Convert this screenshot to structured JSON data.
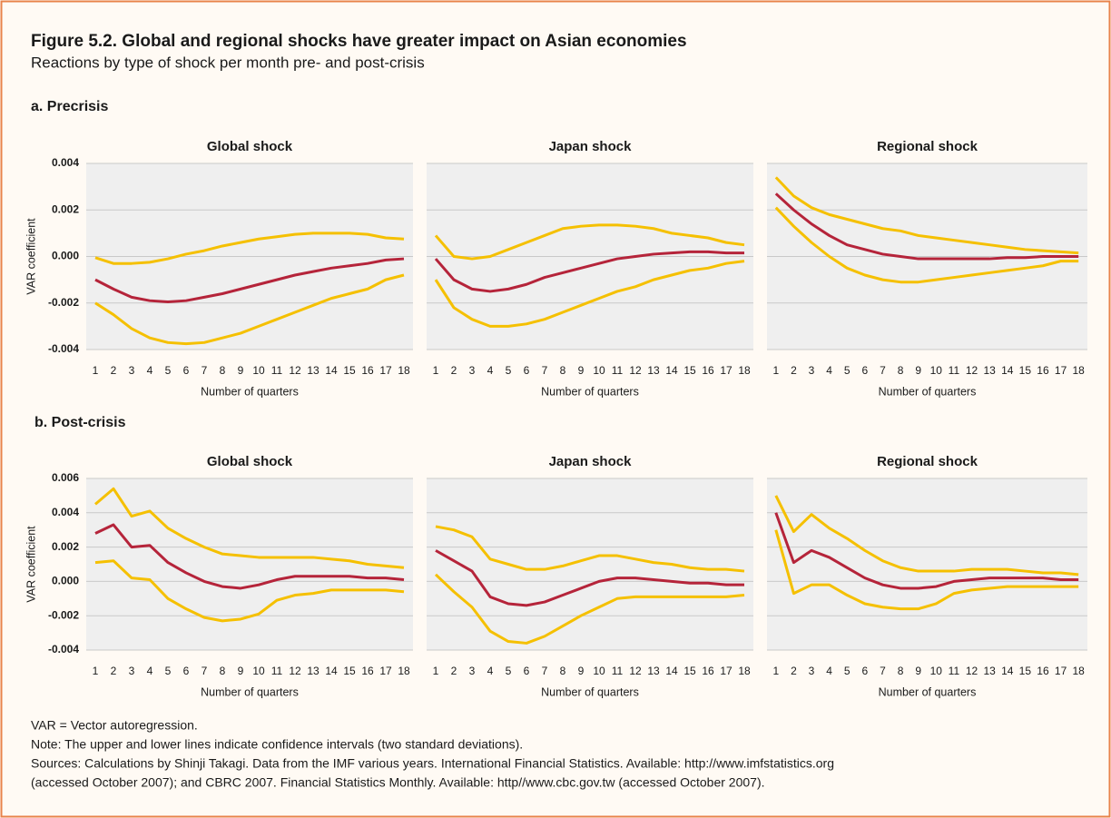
{
  "header": {
    "title": "Figure 5.2. Global and regional shocks have greater impact on Asian economies",
    "subtitle": "Reactions by type of shock per month pre- and post-crisis"
  },
  "sections": [
    "a. Precrisis",
    "b. Post-crisis"
  ],
  "chart_data": [
    {
      "type": "line",
      "title": "Global shock",
      "xlabel": "Number of quarters",
      "ylabel": "VAR coefficient",
      "categories": [
        "1",
        "2",
        "3",
        "4",
        "5",
        "6",
        "7",
        "8",
        "9",
        "10",
        "11",
        "12",
        "13",
        "14",
        "15",
        "16",
        "17",
        "18"
      ],
      "ylim": [
        -0.004,
        0.004
      ],
      "yticks": [
        -0.004,
        -0.002,
        {
          "value": 0,
          "label": "0.000"
        },
        0.002,
        0.004
      ],
      "ytick_labels": true,
      "grid": true,
      "series": [
        {
          "color": "#f5c000",
          "values": [
            -5e-05,
            -0.0003,
            -0.0003,
            -0.00025,
            -0.0001,
            0.0001,
            0.00025,
            0.00045,
            0.0006,
            0.00075,
            0.00085,
            0.00095,
            0.001,
            0.001,
            0.001,
            0.00095,
            0.0008,
            0.00075
          ]
        },
        {
          "color": "#b5243a",
          "values": [
            -0.001,
            -0.0014,
            -0.00175,
            -0.0019,
            -0.00195,
            -0.0019,
            -0.00175,
            -0.0016,
            -0.0014,
            -0.0012,
            -0.001,
            -0.0008,
            -0.00065,
            -0.0005,
            -0.0004,
            -0.0003,
            -0.00015,
            -0.0001
          ]
        },
        {
          "color": "#f5c000",
          "values": [
            -0.002,
            -0.0025,
            -0.0031,
            -0.0035,
            -0.0037,
            -0.00375,
            -0.0037,
            -0.0035,
            -0.0033,
            -0.003,
            -0.0027,
            -0.0024,
            -0.0021,
            -0.0018,
            -0.0016,
            -0.0014,
            -0.001,
            -0.0008
          ]
        }
      ]
    },
    {
      "type": "line",
      "title": "Japan shock",
      "xlabel": "Number of quarters",
      "categories": [
        "1",
        "2",
        "3",
        "4",
        "5",
        "6",
        "7",
        "8",
        "9",
        "10",
        "11",
        "12",
        "13",
        "14",
        "15",
        "16",
        "17",
        "18"
      ],
      "ylim": [
        -0.004,
        0.004
      ],
      "yticks": [
        -0.004,
        -0.002,
        0,
        0.002,
        0.004
      ],
      "ytick_labels": false,
      "grid": true,
      "series": [
        {
          "color": "#f5c000",
          "values": [
            0.0009,
            0,
            -0.0001,
            0,
            0.0003,
            0.0006,
            0.0009,
            0.0012,
            0.0013,
            0.00135,
            0.00135,
            0.0013,
            0.0012,
            0.001,
            0.0009,
            0.0008,
            0.0006,
            0.0005
          ]
        },
        {
          "color": "#b5243a",
          "values": [
            -0.0001,
            -0.001,
            -0.0014,
            -0.0015,
            -0.0014,
            -0.0012,
            -0.0009,
            -0.0007,
            -0.0005,
            -0.0003,
            -0.0001,
            0,
            0.0001,
            0.00015,
            0.0002,
            0.0002,
            0.00015,
            0.00015
          ]
        },
        {
          "color": "#f5c000",
          "values": [
            -0.001,
            -0.0022,
            -0.0027,
            -0.003,
            -0.003,
            -0.0029,
            -0.0027,
            -0.0024,
            -0.0021,
            -0.0018,
            -0.0015,
            -0.0013,
            -0.001,
            -0.0008,
            -0.0006,
            -0.0005,
            -0.0003,
            -0.0002
          ]
        }
      ]
    },
    {
      "type": "line",
      "title": "Regional shock",
      "xlabel": "Number of quarters",
      "categories": [
        "1",
        "2",
        "3",
        "4",
        "5",
        "6",
        "7",
        "8",
        "9",
        "10",
        "11",
        "12",
        "13",
        "14",
        "15",
        "16",
        "17",
        "18"
      ],
      "ylim": [
        -0.004,
        0.004
      ],
      "yticks": [
        -0.004,
        -0.002,
        0,
        0.002,
        0.004
      ],
      "ytick_labels": false,
      "grid": true,
      "series": [
        {
          "color": "#f5c000",
          "values": [
            0.0034,
            0.0026,
            0.0021,
            0.0018,
            0.0016,
            0.0014,
            0.0012,
            0.0011,
            0.0009,
            0.0008,
            0.0007,
            0.0006,
            0.0005,
            0.0004,
            0.0003,
            0.00025,
            0.0002,
            0.00015
          ]
        },
        {
          "color": "#b5243a",
          "values": [
            0.0027,
            0.002,
            0.0014,
            0.0009,
            0.0005,
            0.0003,
            0.0001,
            0,
            -0.0001,
            -0.0001,
            -0.0001,
            -0.0001,
            -0.0001,
            -5e-05,
            -5e-05,
            0,
            0,
            0
          ]
        },
        {
          "color": "#f5c000",
          "values": [
            0.0021,
            0.0013,
            0.0006,
            0,
            -0.0005,
            -0.0008,
            -0.001,
            -0.0011,
            -0.0011,
            -0.001,
            -0.0009,
            -0.0008,
            -0.0007,
            -0.0006,
            -0.0005,
            -0.0004,
            -0.0002,
            -0.0002
          ]
        }
      ]
    },
    {
      "type": "line",
      "title": "Global shock",
      "xlabel": "Number of quarters",
      "ylabel": "VAR coefficient",
      "categories": [
        "1",
        "2",
        "3",
        "4",
        "5",
        "6",
        "7",
        "8",
        "9",
        "10",
        "11",
        "12",
        "13",
        "14",
        "15",
        "16",
        "17",
        "18"
      ],
      "ylim": [
        -0.004,
        0.006
      ],
      "yticks": [
        -0.004,
        -0.002,
        {
          "value": 0,
          "label": "0.000"
        },
        0.002,
        0.004,
        0.006
      ],
      "ytick_labels": true,
      "grid": true,
      "series": [
        {
          "color": "#f5c000",
          "values": [
            0.0045,
            0.0054,
            0.0038,
            0.0041,
            0.0031,
            0.0025,
            0.002,
            0.0016,
            0.0015,
            0.0014,
            0.0014,
            0.0014,
            0.0014,
            0.0013,
            0.0012,
            0.001,
            0.0009,
            0.0008
          ]
        },
        {
          "color": "#b5243a",
          "values": [
            0.0028,
            0.0033,
            0.002,
            0.0021,
            0.0011,
            0.0005,
            0,
            -0.0003,
            -0.0004,
            -0.0002,
            0.0001,
            0.0003,
            0.0003,
            0.0003,
            0.0003,
            0.0002,
            0.0002,
            0.0001
          ]
        },
        {
          "color": "#f5c000",
          "values": [
            0.0011,
            0.0012,
            0.0002,
            0.0001,
            -0.001,
            -0.0016,
            -0.0021,
            -0.0023,
            -0.0022,
            -0.0019,
            -0.0011,
            -0.0008,
            -0.0007,
            -0.0005,
            -0.0005,
            -0.0005,
            -0.0005,
            -0.0006
          ]
        }
      ]
    },
    {
      "type": "line",
      "title": "Japan shock",
      "xlabel": "Number of quarters",
      "categories": [
        "1",
        "2",
        "3",
        "4",
        "5",
        "6",
        "7",
        "8",
        "9",
        "10",
        "11",
        "12",
        "13",
        "14",
        "15",
        "16",
        "17",
        "18"
      ],
      "ylim": [
        -0.004,
        0.006
      ],
      "yticks": [
        -0.004,
        -0.002,
        0,
        0.002,
        0.004,
        0.006
      ],
      "ytick_labels": false,
      "grid": true,
      "series": [
        {
          "color": "#f5c000",
          "values": [
            0.0032,
            0.003,
            0.0026,
            0.0013,
            0.001,
            0.0007,
            0.0007,
            0.0009,
            0.0012,
            0.0015,
            0.0015,
            0.0013,
            0.0011,
            0.001,
            0.0008,
            0.0007,
            0.0007,
            0.0006
          ]
        },
        {
          "color": "#b5243a",
          "values": [
            0.0018,
            0.0012,
            0.0006,
            -0.0009,
            -0.0013,
            -0.0014,
            -0.0012,
            -0.0008,
            -0.0004,
            0,
            0.0002,
            0.0002,
            0.0001,
            0,
            -0.0001,
            -0.0001,
            -0.0002,
            -0.0002
          ]
        },
        {
          "color": "#f5c000",
          "values": [
            0.0004,
            -0.0006,
            -0.0015,
            -0.0029,
            -0.0035,
            -0.0036,
            -0.0032,
            -0.0026,
            -0.002,
            -0.0015,
            -0.001,
            -0.0009,
            -0.0009,
            -0.0009,
            -0.0009,
            -0.0009,
            -0.0009,
            -0.0008
          ]
        }
      ]
    },
    {
      "type": "line",
      "title": "Regional shock",
      "xlabel": "Number of quarters",
      "categories": [
        "1",
        "2",
        "3",
        "4",
        "5",
        "6",
        "7",
        "8",
        "9",
        "10",
        "11",
        "12",
        "13",
        "14",
        "15",
        "16",
        "17",
        "18"
      ],
      "ylim": [
        -0.004,
        0.006
      ],
      "yticks": [
        -0.004,
        -0.002,
        0,
        0.002,
        0.004,
        0.006
      ],
      "ytick_labels": false,
      "grid": true,
      "series": [
        {
          "color": "#f5c000",
          "values": [
            0.005,
            0.0029,
            0.0039,
            0.0031,
            0.0025,
            0.0018,
            0.0012,
            0.0008,
            0.0006,
            0.0006,
            0.0006,
            0.0007,
            0.0007,
            0.0007,
            0.0006,
            0.0005,
            0.0005,
            0.0004
          ]
        },
        {
          "color": "#b5243a",
          "values": [
            0.004,
            0.0011,
            0.0018,
            0.0014,
            0.0008,
            0.0002,
            -0.0002,
            -0.0004,
            -0.0004,
            -0.0003,
            0,
            0.0001,
            0.0002,
            0.0002,
            0.0002,
            0.0002,
            0.0001,
            0.0001
          ]
        },
        {
          "color": "#f5c000",
          "values": [
            0.003,
            -0.0007,
            -0.0002,
            -0.0002,
            -0.0008,
            -0.0013,
            -0.0015,
            -0.0016,
            -0.0016,
            -0.0013,
            -0.0007,
            -0.0005,
            -0.0004,
            -0.0003,
            -0.0003,
            -0.0003,
            -0.0003,
            -0.0003
          ]
        }
      ]
    }
  ],
  "notes": [
    "VAR = Vector autoregression.",
    "Note: The upper and lower lines indicate confidence intervals (two standard deviations).",
    "Sources: Calculations by Shinji Takagi. Data from the IMF various years.  International Financial Statistics.  Available: http://www.imfstatistics.org",
    "(accessed October 2007); and CBRC 2007. Financial Statistics Monthly. Available: http//www.cbc.gov.tw (accessed October 2007)."
  ]
}
